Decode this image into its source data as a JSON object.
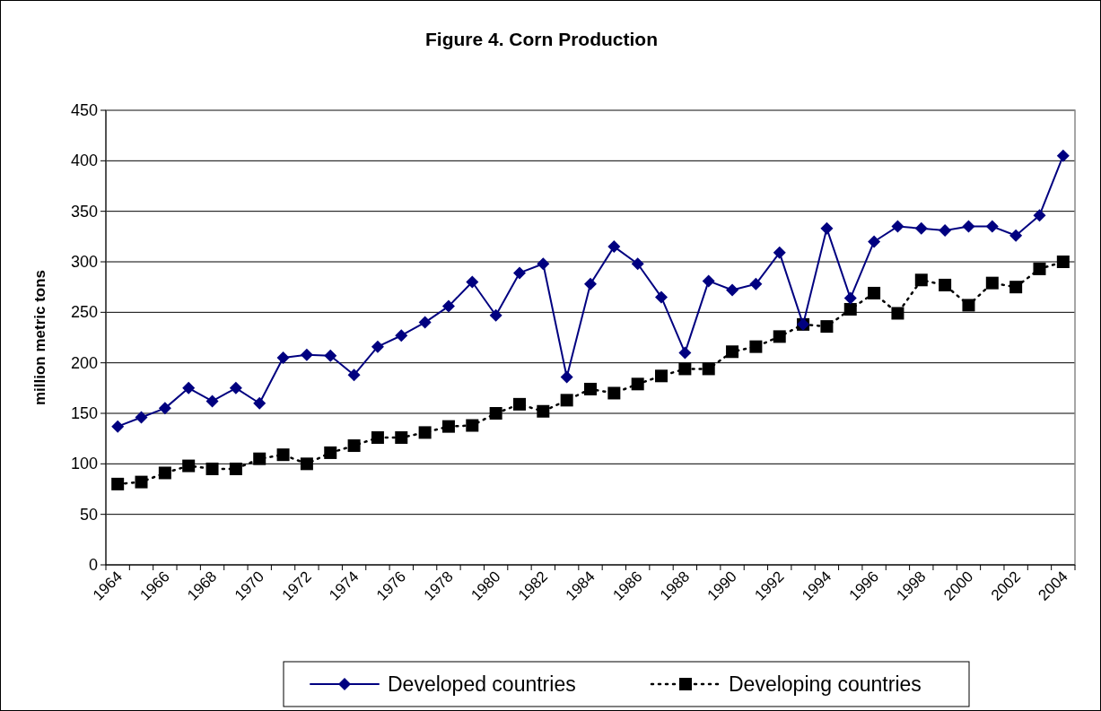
{
  "chart_data": {
    "type": "line",
    "title": "Figure 4. Corn Production",
    "ylabel": "million metric tons",
    "categories": [
      "1964",
      null,
      "1966",
      null,
      "1968",
      null,
      "1970",
      null,
      "1972",
      null,
      "1974",
      null,
      "1976",
      null,
      "1978",
      null,
      "1980",
      null,
      "1982",
      null,
      "1984",
      null,
      "1986",
      null,
      "1988",
      null,
      "1990",
      null,
      "1992",
      null,
      "1994",
      null,
      "1996",
      null,
      "1998",
      null,
      "2000",
      null,
      "2002",
      null,
      "2004"
    ],
    "series": [
      {
        "name": "Developed countries",
        "color": "#000080",
        "marker": "diamond",
        "line_style": "solid",
        "values": [
          137,
          146,
          155,
          175,
          162,
          175,
          160,
          205,
          208,
          207,
          188,
          216,
          227,
          240,
          256,
          280,
          247,
          289,
          298,
          186,
          278,
          315,
          298,
          265,
          210,
          281,
          272,
          278,
          309,
          238,
          333,
          264,
          320,
          335,
          333,
          331,
          335,
          335,
          326,
          346,
          405
        ]
      },
      {
        "name": "Developing countries",
        "color": "#000000",
        "marker": "square",
        "line_style": "dotted",
        "values": [
          80,
          82,
          91,
          98,
          95,
          95,
          105,
          109,
          100,
          111,
          118,
          126,
          126,
          131,
          137,
          138,
          150,
          159,
          152,
          163,
          174,
          170,
          179,
          187,
          194,
          194,
          211,
          216,
          226,
          238,
          236,
          253,
          269,
          249,
          282,
          277,
          257,
          279,
          275,
          293,
          300
        ]
      }
    ],
    "ylim": [
      0,
      450
    ],
    "yticks": [
      0,
      50,
      100,
      150,
      200,
      250,
      300,
      350,
      400,
      450
    ],
    "grid": "y",
    "legend": "bottom"
  }
}
